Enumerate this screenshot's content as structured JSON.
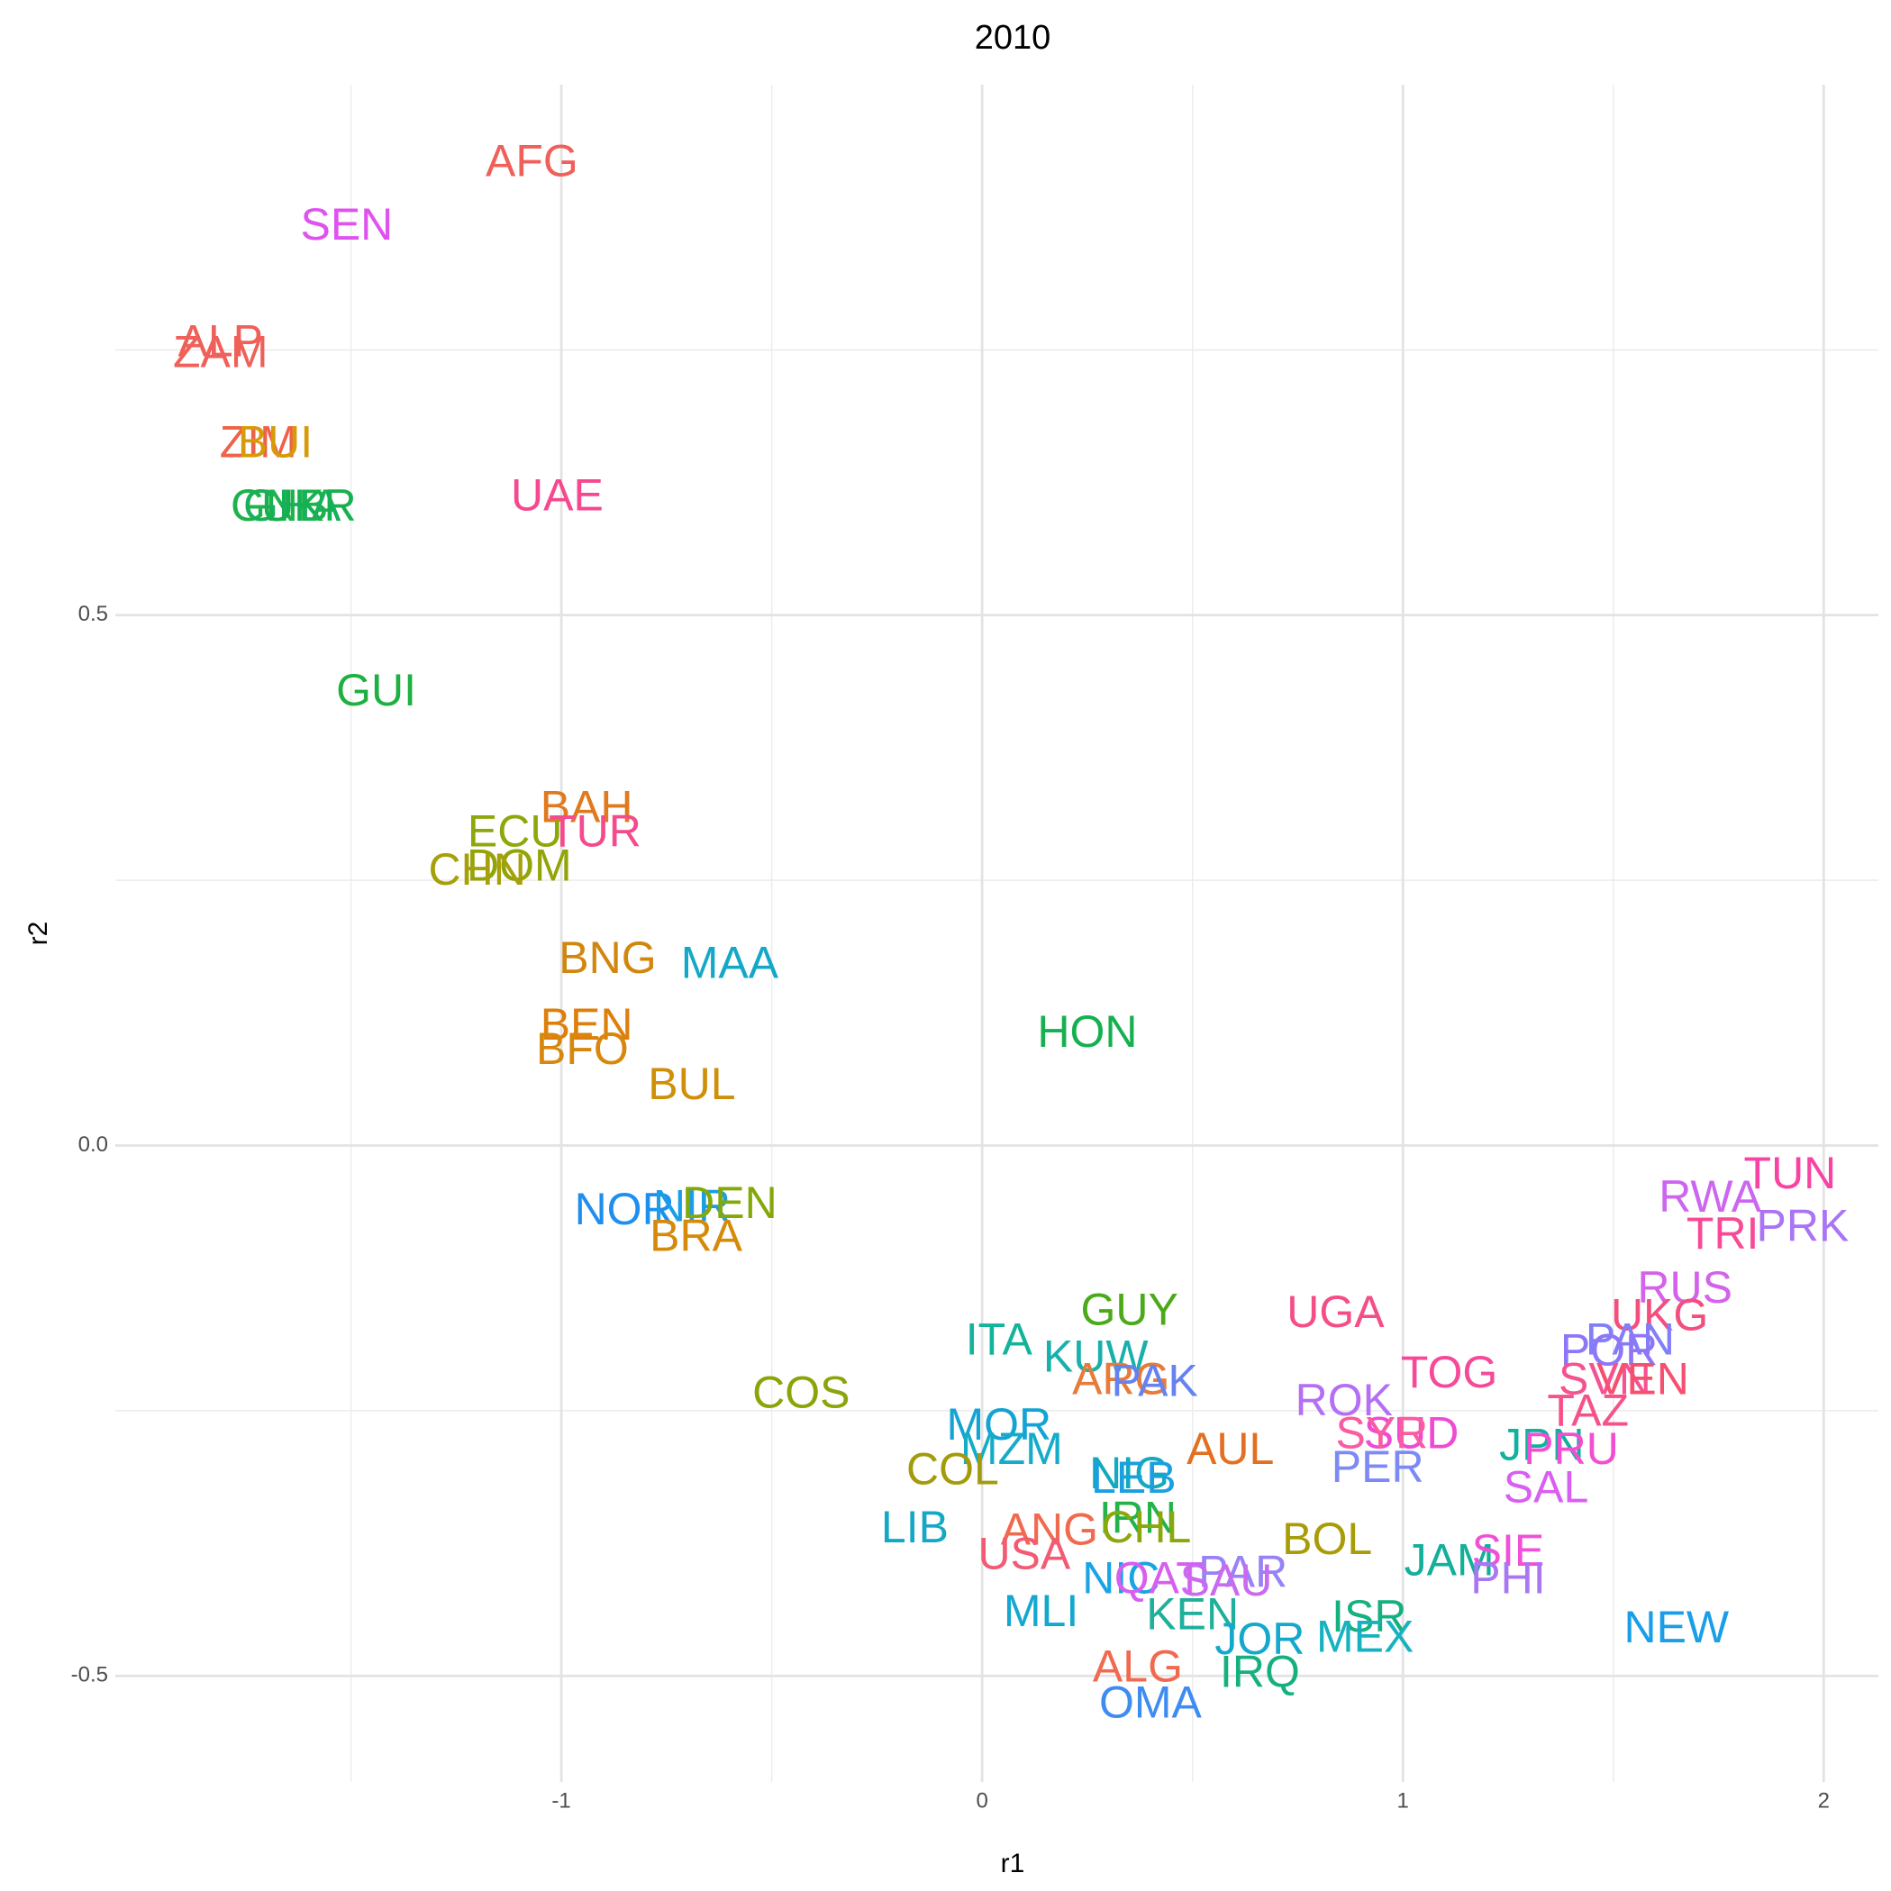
{
  "chart_data": {
    "type": "text-scatter",
    "title": "2010",
    "x_label": "r1",
    "y_label": "r2",
    "xlim": [
      -2.06,
      2.13
    ],
    "ylim": [
      -0.6,
      1.0
    ],
    "xticks": [
      -1,
      0,
      1,
      2
    ],
    "yticks": [
      -0.5,
      0.0,
      0.5
    ],
    "grid": true,
    "labels": [
      "AFG",
      "SEN",
      "ALP",
      "ZAM",
      "ZIM",
      "BUI",
      "GNB",
      "GHA",
      "UKR",
      "UAE",
      "GUI",
      "BAH",
      "ECU",
      "TUR",
      "DOM",
      "CHN",
      "BNG",
      "MAA",
      "BEN",
      "BFO",
      "BUL",
      "HON",
      "NOR",
      "NIR",
      "DEN",
      "BRA",
      "TUN",
      "RWA",
      "PRK",
      "TRI",
      "RUS",
      "UKG",
      "GUY",
      "UGA",
      "ITA",
      "KUW",
      "PAN",
      "POR",
      "TOG",
      "ARG",
      "PAK",
      "SVN",
      "VEN",
      "COS",
      "ROK",
      "TAZ",
      "MOR",
      "SUD",
      "SYR",
      "AUL",
      "MZM",
      "JPN",
      "PRU",
      "PER",
      "SAL",
      "COL",
      "NIG",
      "LEB",
      "LIB",
      "ANG",
      "IRN",
      "CHL",
      "BOL",
      "USA",
      "JAM",
      "SIE",
      "PHI",
      "NIC",
      "PAR",
      "QAT",
      "SAU",
      "MLI",
      "KEN",
      "ISR",
      "MEX",
      "NEW",
      "JOR",
      "ALG",
      "IRQ",
      "OMA"
    ],
    "x": [
      -1.07,
      -1.51,
      -1.81,
      -1.81,
      -1.72,
      -1.68,
      -1.67,
      -1.64,
      -1.6,
      -1.01,
      -1.44,
      -0.94,
      -1.11,
      -0.92,
      -1.1,
      -1.2,
      -0.89,
      -0.6,
      -0.94,
      -0.95,
      -0.69,
      0.25,
      -0.85,
      -0.69,
      -0.6,
      -0.68,
      1.92,
      1.73,
      1.95,
      1.76,
      1.67,
      1.61,
      0.35,
      0.84,
      0.04,
      0.27,
      1.54,
      1.49,
      1.11,
      0.33,
      0.41,
      1.48,
      1.57,
      -0.43,
      0.86,
      1.44,
      0.04,
      1.02,
      0.95,
      0.59,
      0.07,
      1.33,
      1.4,
      0.94,
      1.34,
      -0.07,
      0.35,
      0.36,
      -0.16,
      0.16,
      0.37,
      0.39,
      0.82,
      0.1,
      1.11,
      1.25,
      1.25,
      0.33,
      0.62,
      0.42,
      0.58,
      0.14,
      0.5,
      0.92,
      0.91,
      1.65,
      0.66,
      0.37,
      0.66,
      0.4
    ],
    "y": [
      0.925,
      0.865,
      0.755,
      0.745,
      0.66,
      0.66,
      0.6,
      0.6,
      0.6,
      0.61,
      0.426,
      0.316,
      0.293,
      0.293,
      0.261,
      0.257,
      0.174,
      0.169,
      0.111,
      0.088,
      0.055,
      0.104,
      -0.063,
      -0.06,
      -0.057,
      -0.088,
      -0.029,
      -0.051,
      -0.079,
      -0.086,
      -0.137,
      -0.163,
      -0.158,
      -0.16,
      -0.186,
      -0.202,
      -0.186,
      -0.196,
      -0.217,
      -0.223,
      -0.225,
      -0.223,
      -0.223,
      -0.236,
      -0.243,
      -0.253,
      -0.266,
      -0.274,
      -0.274,
      -0.289,
      -0.289,
      -0.285,
      -0.289,
      -0.306,
      -0.325,
      -0.308,
      -0.312,
      -0.316,
      -0.363,
      -0.365,
      -0.354,
      -0.363,
      -0.374,
      -0.388,
      -0.394,
      -0.385,
      -0.411,
      -0.411,
      -0.405,
      -0.411,
      -0.413,
      -0.442,
      -0.445,
      -0.447,
      -0.466,
      -0.457,
      -0.468,
      -0.494,
      -0.499,
      -0.528
    ],
    "colors": [
      "#f0605a",
      "#e052f0",
      "#f0605a",
      "#f0605a",
      "#ee6248",
      "#d79a08",
      "#1eb24a",
      "#18b05a",
      "#16b050",
      "#f5488f",
      "#1eb040",
      "#e07a1e",
      "#8da80a",
      "#f54a8c",
      "#92a408",
      "#a7a00a",
      "#d1870e",
      "#14a8c8",
      "#de7f0c",
      "#d7870c",
      "#cf8f08",
      "#16b050",
      "#1f8fef",
      "#1a9ee6",
      "#84a80a",
      "#d58a0a",
      "#f843a4",
      "#cc66f0",
      "#a974f6",
      "#f84a96",
      "#d462ea",
      "#f34f7e",
      "#4aaa1a",
      "#f44d88",
      "#12b49a",
      "#18b0ac",
      "#807ef8",
      "#8f76f8",
      "#f64a99",
      "#e87a3a",
      "#6482f0",
      "#f55290",
      "#f55070",
      "#8ca40a",
      "#b46ff5",
      "#f6528a",
      "#14a4d4",
      "#ef4ad4",
      "#f95ca0",
      "#e27022",
      "#14acc8",
      "#12b0a0",
      "#f14ed2",
      "#7d8af6",
      "#d85ff1",
      "#a39b0c",
      "#14aabe",
      "#1aa0e0",
      "#14a8c4",
      "#f06a50",
      "#24b24a",
      "#8aa80a",
      "#a89c08",
      "#f35a74",
      "#12b09a",
      "#f050d8",
      "#a976f4",
      "#1aa4e4",
      "#9982f6",
      "#d65ff0",
      "#c96af0",
      "#14a8d0",
      "#1eb09a",
      "#16b080",
      "#16b2c0",
      "#1a9ee8",
      "#14a8cc",
      "#f06a50",
      "#16b080",
      "#3f8cf0"
    ]
  }
}
